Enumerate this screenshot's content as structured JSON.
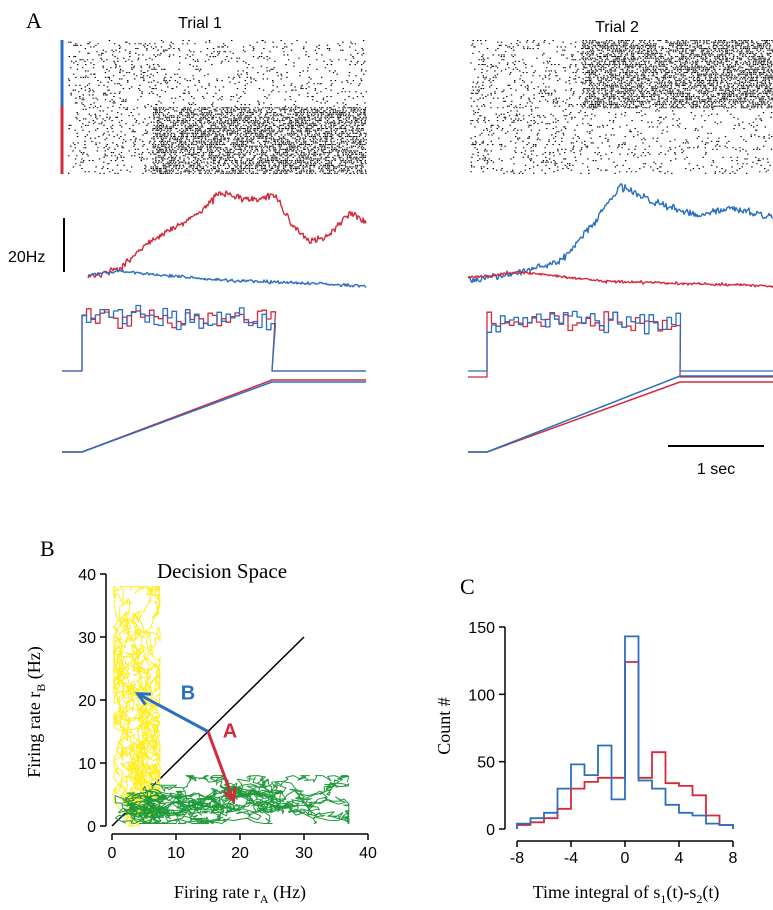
{
  "panel_labels": {
    "a": "A",
    "b": "B",
    "c": "C"
  },
  "colors": {
    "red": "#d42a3c",
    "blue": "#2a6fc0",
    "yellow": "#ffee22",
    "green": "#1f9a3a",
    "black": "#000000"
  },
  "chart_data": [
    {
      "type": "raster_and_traces",
      "panel": "A",
      "trials": [
        {
          "title": "Trial 1",
          "winner": "red"
        },
        {
          "title": "Trial 2",
          "winner": "blue"
        }
      ],
      "rate_scale_label": "20Hz",
      "time_scale_label": "1 sec",
      "time_scale_value_s": 1
    },
    {
      "type": "line",
      "panel": "B",
      "title": "Decision Space",
      "xlabel": "Firing rate r",
      "xlabel_sub": "A",
      "xlabel_unit": " (Hz)",
      "ylabel": "Firing rate r",
      "ylabel_sub": "B",
      "ylabel_unit": " (Hz)",
      "xlim": [
        0,
        40
      ],
      "ylim": [
        0,
        40
      ],
      "xticks": [
        "0",
        "10",
        "20",
        "30",
        "40"
      ],
      "yticks": [
        "0",
        "10",
        "20",
        "30",
        "40"
      ],
      "diagonal": [
        [
          0,
          0
        ],
        [
          30,
          30
        ]
      ],
      "arrows": [
        {
          "label": "B",
          "color": "blue",
          "from": [
            15,
            15
          ],
          "to": [
            4,
            21
          ]
        },
        {
          "label": "A",
          "color": "red",
          "from": [
            15,
            15
          ],
          "to": [
            19,
            4
          ]
        }
      ]
    },
    {
      "type": "step",
      "panel": "C",
      "xlabel": "Time integral of s",
      "xlabel_tail": "(t)-s",
      "xlabel_end": "(t)",
      "xlabel_sub1": "1",
      "xlabel_sub2": "2",
      "ylabel": "Count #",
      "xlim": [
        -8,
        8
      ],
      "ylim": [
        0,
        150
      ],
      "xticks": [
        "-8",
        "-4",
        "0",
        "4",
        "8"
      ],
      "yticks": [
        "0",
        "50",
        "100",
        "150"
      ],
      "bin_edges": [
        -8,
        -7,
        -6,
        -5,
        -4,
        -3,
        -2,
        -1,
        0,
        1,
        2,
        3,
        4,
        5,
        6,
        7,
        8
      ],
      "series": [
        {
          "color": "blue",
          "values": [
            4,
            8,
            12,
            30,
            48,
            40,
            62,
            22,
            143,
            36,
            30,
            18,
            12,
            10,
            4,
            3
          ]
        },
        {
          "color": "red",
          "values": [
            3,
            5,
            8,
            15,
            30,
            35,
            38,
            38,
            124,
            38,
            57,
            34,
            32,
            25,
            10,
            3
          ]
        }
      ]
    }
  ]
}
